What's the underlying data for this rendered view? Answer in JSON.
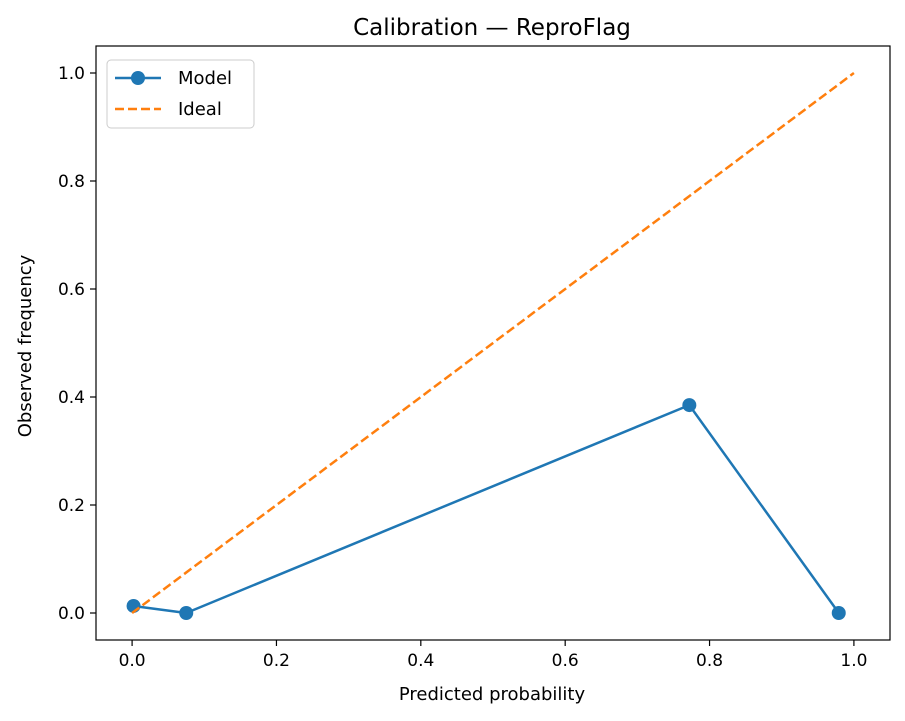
{
  "chart_data": {
    "type": "line",
    "title": "Calibration — ReproFlag",
    "xlabel": "Predicted probability",
    "ylabel": "Observed frequency",
    "xlim": [
      -0.05,
      1.05
    ],
    "ylim": [
      -0.05,
      1.05
    ],
    "xticks": [
      "0.0",
      "0.2",
      "0.4",
      "0.6",
      "0.8",
      "1.0"
    ],
    "yticks": [
      "0.0",
      "0.2",
      "0.4",
      "0.6",
      "0.8",
      "1.0"
    ],
    "grid": false,
    "legend_position": "top-left",
    "series": [
      {
        "name": "Model",
        "color": "#1f77b4",
        "style": "solid-with-markers",
        "x": [
          0.002,
          0.075,
          0.772,
          0.979
        ],
        "y": [
          0.013,
          0.0,
          0.385,
          0.0
        ]
      },
      {
        "name": "Ideal",
        "color": "#ff7f0e",
        "style": "dashed",
        "x": [
          0.0,
          1.0
        ],
        "y": [
          0.0,
          1.0
        ]
      }
    ]
  }
}
